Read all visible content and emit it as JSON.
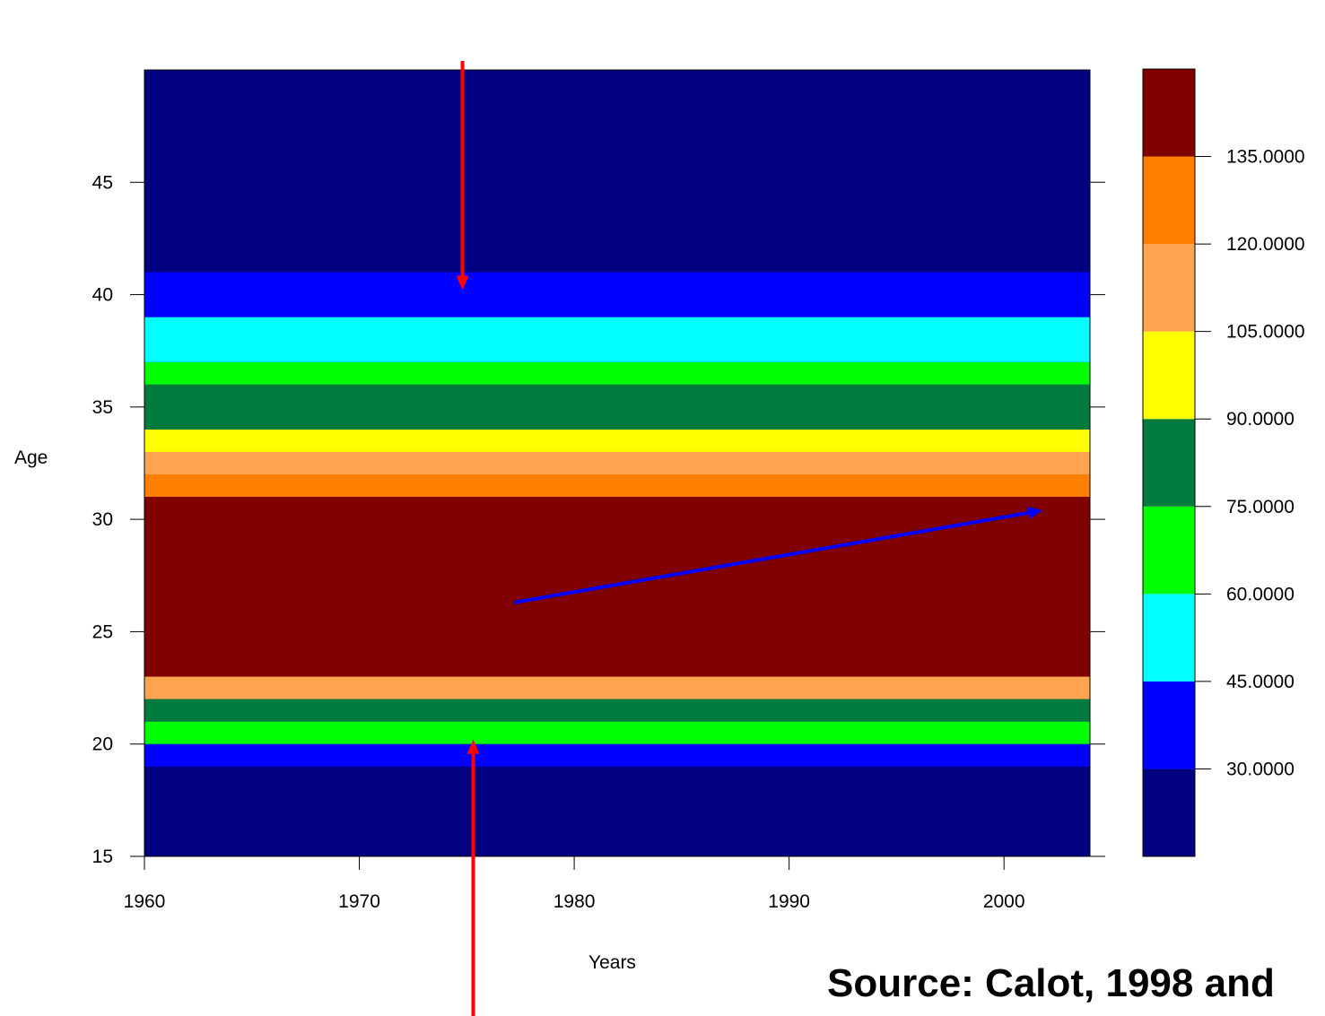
{
  "chart_data": {
    "type": "heatmap",
    "xlabel": "Years",
    "ylabel": "Age",
    "xlim": [
      1960,
      2004
    ],
    "ylim": [
      15,
      50
    ],
    "x_ticks": [
      "1960",
      "1970",
      "1980",
      "1990",
      "2000"
    ],
    "y_ticks": [
      "15",
      "20",
      "25",
      "30",
      "35",
      "40",
      "45"
    ],
    "legend": {
      "placement": "right",
      "labels": [
        "30.0000",
        "45.0000",
        "60.0000",
        "75.0000",
        "90.0000",
        "105.0000",
        "120.0000",
        "135.0000"
      ],
      "colors": [
        "#000080",
        "#0000ff",
        "#00ffff",
        "#00ff00",
        "#007a3d",
        "#ffff00",
        "#ffa54f",
        "#ff8000",
        "#800000"
      ]
    },
    "annotations": [
      {
        "name": "red-arrow-down",
        "color": "#ff0000",
        "x1": 1974.8,
        "y1": 50.4,
        "x2": 1974.8,
        "y2": 40.2
      },
      {
        "name": "red-arrow-up",
        "color": "#ff0000",
        "x1": 1975.3,
        "y1": 7.0,
        "x2": 1975.3,
        "y2": 20.2
      },
      {
        "name": "blue-arrow",
        "color": "#0000ff",
        "x1": 1977.2,
        "y1": 26.3,
        "x2": 2001.8,
        "y2": 30.4
      }
    ],
    "value_level_bands_by_age": [
      {
        "age_from": 15,
        "age_to": 19,
        "level": 0
      },
      {
        "age_from": 19,
        "age_to": 20,
        "level": 1
      },
      {
        "age_from": 20,
        "age_to": 21,
        "level": 3
      },
      {
        "age_from": 21,
        "age_to": 22,
        "level": 4
      },
      {
        "age_from": 22,
        "age_to": 23,
        "level": 6
      },
      {
        "age_from": 23,
        "age_to": 31,
        "level": 8
      },
      {
        "age_from": 31,
        "age_to": 32,
        "level": 7
      },
      {
        "age_from": 32,
        "age_to": 33,
        "level": 6
      },
      {
        "age_from": 33,
        "age_to": 34,
        "level": 5
      },
      {
        "age_from": 34,
        "age_to": 36,
        "level": 4
      },
      {
        "age_from": 36,
        "age_to": 37,
        "level": 3
      },
      {
        "age_from": 37,
        "age_to": 39,
        "level": 2
      },
      {
        "age_from": 39,
        "age_to": 41,
        "level": 1
      },
      {
        "age_from": 41,
        "age_to": 50,
        "level": 0
      }
    ]
  },
  "source_text": "Source: Calot, 1998 and"
}
